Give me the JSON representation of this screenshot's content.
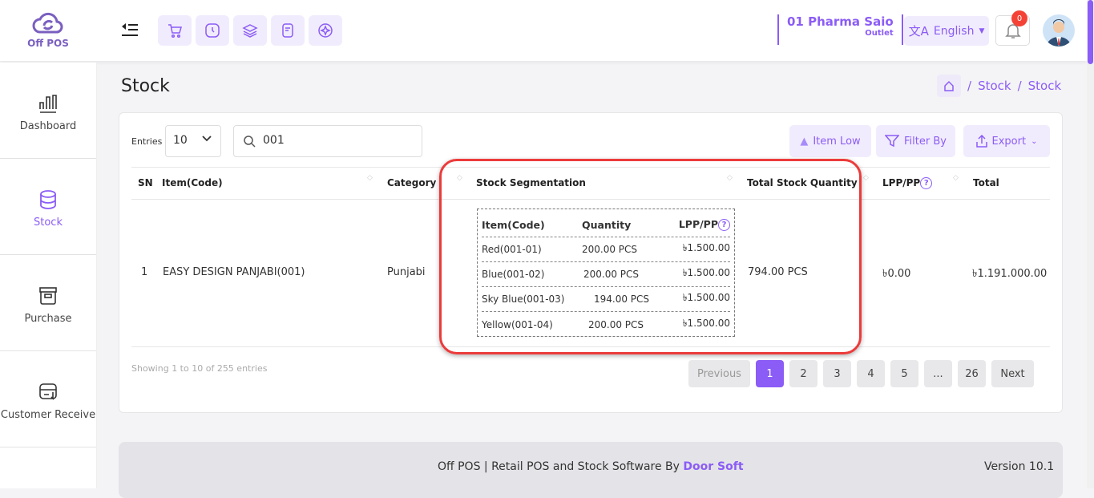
{
  "brand": {
    "logo_text": "Off POS"
  },
  "topbar": {
    "outlet_name": "01 Pharma Saio",
    "outlet_label": "Outlet",
    "language": "English",
    "notification_count": "0",
    "quick_icons": [
      "cart-icon",
      "clock-icon",
      "layers-icon",
      "notes-icon",
      "compass-icon"
    ]
  },
  "sidebar": {
    "items": [
      {
        "label": "Dashboard",
        "icon": "chart-icon"
      },
      {
        "label": "Stock",
        "icon": "database-icon",
        "active": true
      },
      {
        "label": "Purchase",
        "icon": "archive-icon"
      },
      {
        "label": "Customer Receive",
        "icon": "receive-icon"
      }
    ]
  },
  "page": {
    "title": "Stock",
    "breadcrumb": [
      "Stock",
      "Stock"
    ]
  },
  "toolbar": {
    "entries_label": "Entries",
    "entries_value": "10",
    "search_value": "001",
    "item_low": "Item Low",
    "filter_by": "Filter By",
    "export": "Export"
  },
  "table": {
    "headers": [
      "SN",
      "Item(Code)",
      "Category",
      "Stock Segmentation",
      "Total Stock Quantity",
      "LPP/PP",
      "Total"
    ],
    "rows": [
      {
        "sn": "1",
        "item": "EASY DESIGN PANJABI(001)",
        "category": "Punjabi",
        "total_qty": "794.00 PCS",
        "lpp": "৳0.00",
        "total": "৳1.191.000.00",
        "segmentation": {
          "headers": [
            "Item(Code)",
            "Quantity",
            "LPP/PP"
          ],
          "rows": [
            {
              "item": "Red(001-01)",
              "qty": "200.00 PCS",
              "lpp": "৳1.500.00"
            },
            {
              "item": "Blue(001-02)",
              "qty": "200.00 PCS",
              "lpp": "৳1.500.00"
            },
            {
              "item": "Sky Blue(001-03)",
              "qty": "194.00 PCS",
              "lpp": "৳1.500.00"
            },
            {
              "item": "Yellow(001-04)",
              "qty": "200.00 PCS",
              "lpp": "৳1.500.00"
            }
          ]
        }
      }
    ]
  },
  "pagination": {
    "info": "Showing 1 to 10 of 255 entries",
    "previous": "Previous",
    "pages": [
      "1",
      "2",
      "3",
      "4",
      "5",
      "...",
      "26"
    ],
    "current": "1",
    "next": "Next"
  },
  "footer": {
    "text": "Off POS | Retail POS and Stock Software By ",
    "brand": "Door Soft",
    "version": "Version 10.1"
  },
  "colors": {
    "accent": "#8b5cf6",
    "highlight": "#ec3b3b"
  }
}
